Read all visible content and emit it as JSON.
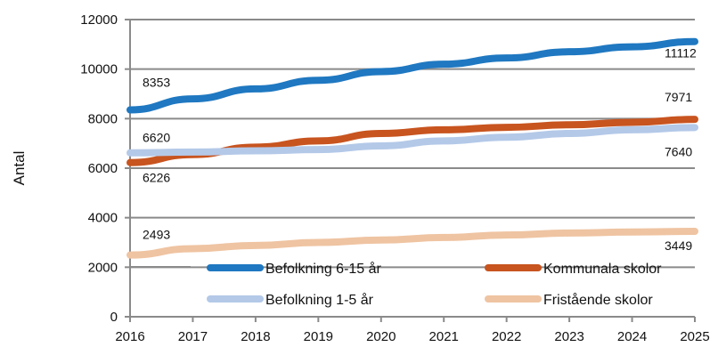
{
  "chart_data": {
    "type": "line",
    "title": "",
    "xlabel": "",
    "ylabel": "Antal",
    "x": [
      "2016",
      "2017",
      "2018",
      "2019",
      "2020",
      "2021",
      "2022",
      "2023",
      "2024",
      "2025"
    ],
    "ylim": [
      0,
      12000
    ],
    "yticks": [
      "0",
      "2000",
      "4000",
      "6000",
      "8000",
      "10000",
      "12000"
    ],
    "grid": true,
    "legend_position": "bottom-inside",
    "series": [
      {
        "name": "Befolkning 6-15 år",
        "color": "#1f78c1",
        "values": [
          8353,
          8800,
          9200,
          9550,
          9900,
          10200,
          10450,
          10700,
          10900,
          11112
        ]
      },
      {
        "name": "Kommunala skolor",
        "color": "#c8541f",
        "values": [
          6226,
          6550,
          6850,
          7100,
          7400,
          7550,
          7650,
          7750,
          7850,
          7971
        ]
      },
      {
        "name": "Befolkning 1-5 år",
        "color": "#b4c9e8",
        "values": [
          6620,
          6650,
          6700,
          6750,
          6900,
          7100,
          7250,
          7400,
          7550,
          7640
        ]
      },
      {
        "name": "Fristående skolor",
        "color": "#efc4a2",
        "values": [
          2493,
          2750,
          2880,
          3000,
          3100,
          3200,
          3300,
          3380,
          3420,
          3449
        ]
      }
    ],
    "data_labels": [
      {
        "text": "8353",
        "series": 0,
        "point": 0
      },
      {
        "text": "11112",
        "series": 0,
        "point": 9
      },
      {
        "text": "6226",
        "series": 1,
        "point": 0
      },
      {
        "text": "7971",
        "series": 1,
        "point": 9
      },
      {
        "text": "6620",
        "series": 2,
        "point": 0
      },
      {
        "text": "7640",
        "series": 2,
        "point": 9
      },
      {
        "text": "2493",
        "series": 3,
        "point": 0
      },
      {
        "text": "3449",
        "series": 3,
        "point": 9
      }
    ]
  }
}
